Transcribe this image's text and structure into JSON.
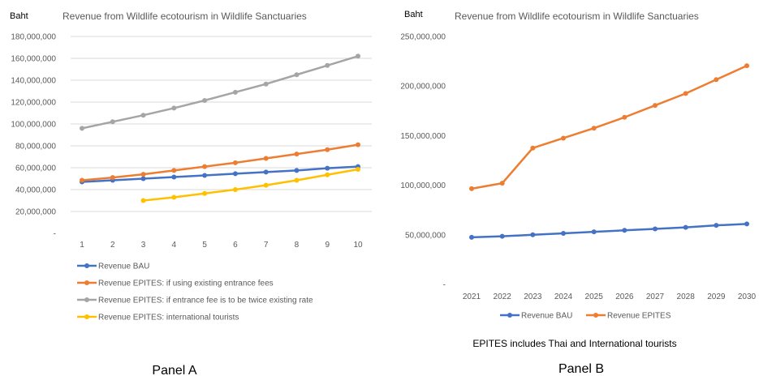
{
  "chart_data": [
    {
      "panel_label": "Panel A",
      "type": "line",
      "title": "Revenue from Wildlife ecotourism in Wildlife Sanctuaries",
      "unit_label": "Baht",
      "x": [
        1,
        2,
        3,
        4,
        5,
        6,
        7,
        8,
        9,
        10
      ],
      "ylim": [
        0,
        180000000
      ],
      "y_ticks": [
        0,
        20000000,
        40000000,
        60000000,
        80000000,
        100000000,
        120000000,
        140000000,
        160000000,
        180000000
      ],
      "y_tick_labels": [
        "-",
        "20,000,000",
        "40,000,000",
        "60,000,000",
        "80,000,000",
        "100,000,000",
        "120,000,000",
        "140,000,000",
        "160,000,000",
        "180,000,000"
      ],
      "grid": "horizontal",
      "legend_position": "bottom-left",
      "series": [
        {
          "name": "Revenue BAU",
          "color": "#4472c4",
          "values": [
            47000000,
            48500000,
            50000000,
            51500000,
            53000000,
            54500000,
            56000000,
            57500000,
            59500000,
            61000000
          ]
        },
        {
          "name": "Revenue EPITES:  if using existing entrance fees",
          "color": "#ed7d31",
          "values": [
            48500000,
            51000000,
            54000000,
            57500000,
            61000000,
            64500000,
            68500000,
            72500000,
            76500000,
            81000000
          ]
        },
        {
          "name": "Revenue EPITES: if entrance fee is to be twice existing rate",
          "color": "#a5a5a5",
          "values": [
            96000000,
            102000000,
            108000000,
            114500000,
            121500000,
            129000000,
            136500000,
            145000000,
            153500000,
            162000000
          ]
        },
        {
          "name": "Revenue EPITES: international tourists",
          "color": "#ffc000",
          "values": [
            null,
            null,
            30000000,
            33000000,
            36500000,
            40000000,
            44000000,
            48500000,
            53500000,
            58500000
          ]
        }
      ]
    },
    {
      "panel_label": "Panel B",
      "type": "line",
      "title": "Revenue from Wildlife ecotourism in Wildlife Sanctuaries",
      "unit_label": "Baht",
      "caption": "EPITES includes Thai and International tourists",
      "x": [
        "2021",
        "2022",
        "2023",
        "2024",
        "2025",
        "2026",
        "2027",
        "2028",
        "2029",
        "2030"
      ],
      "ylim": [
        0,
        250000000
      ],
      "y_ticks": [
        0,
        50000000,
        100000000,
        150000000,
        200000000,
        250000000
      ],
      "y_tick_labels": [
        "-",
        "50,000,000",
        "100,000,000",
        "150,000,000",
        "200,000,000",
        "250,000,000"
      ],
      "grid": "none",
      "legend_position": "bottom",
      "series": [
        {
          "name": "Revenue BAU",
          "color": "#4472c4",
          "values": [
            47500000,
            48500000,
            50000000,
            51500000,
            53000000,
            54500000,
            56000000,
            57500000,
            59500000,
            61000000
          ]
        },
        {
          "name": "Revenue EPITES",
          "color": "#ed7d31",
          "values": [
            96500000,
            102000000,
            137500000,
            147500000,
            157500000,
            168500000,
            180500000,
            192500000,
            206500000,
            220500000
          ]
        }
      ]
    }
  ]
}
